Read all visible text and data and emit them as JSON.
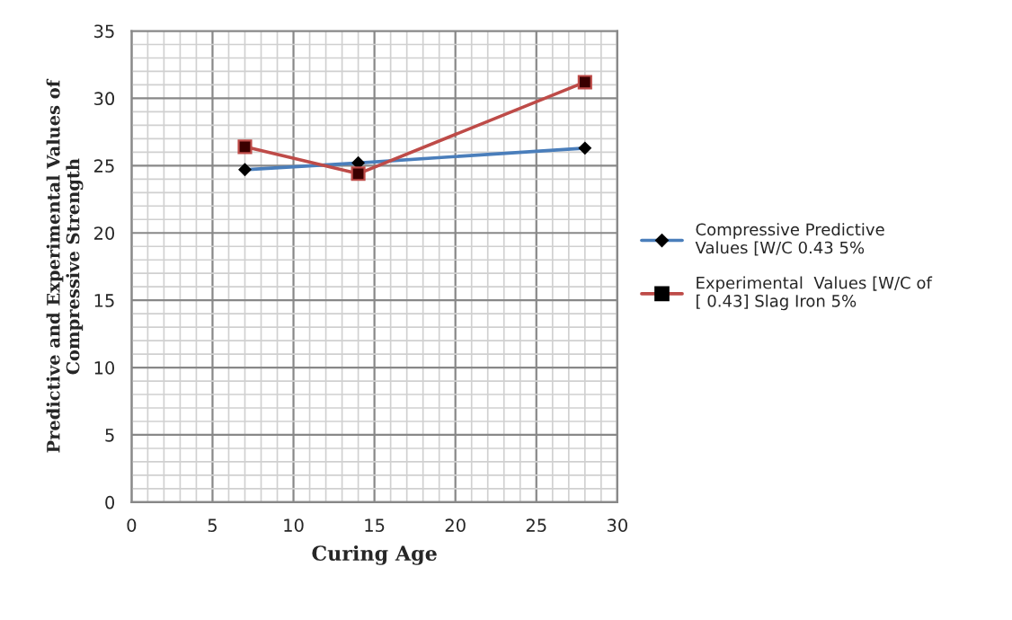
{
  "chart_data": {
    "type": "line",
    "xlabel": "Curing Age",
    "ylabel": "Predictive and Experimental Values of Compressive Strength",
    "xlim": [
      0,
      30
    ],
    "xticks": [
      0,
      5,
      10,
      15,
      20,
      25,
      30
    ],
    "ylim": [
      0,
      35
    ],
    "yticks": [
      0,
      5,
      10,
      15,
      20,
      25,
      30,
      35
    ],
    "grid": true,
    "legend": "right",
    "line_style": "solid",
    "series": [
      {
        "name": "Compressive Predictive Values [W/C 0.43 5%",
        "color": "#4a7ebb",
        "marker": "diamond",
        "x": [
          7,
          14,
          28
        ],
        "values": [
          24.7,
          25.2,
          26.3
        ]
      },
      {
        "name": "Experimental  Values [W/C of [ 0.43] Slag Iron 5%",
        "color": "#be4b48",
        "marker": "square",
        "x": [
          7,
          14,
          28
        ],
        "values": [
          26.4,
          24.4,
          31.2
        ]
      }
    ]
  }
}
